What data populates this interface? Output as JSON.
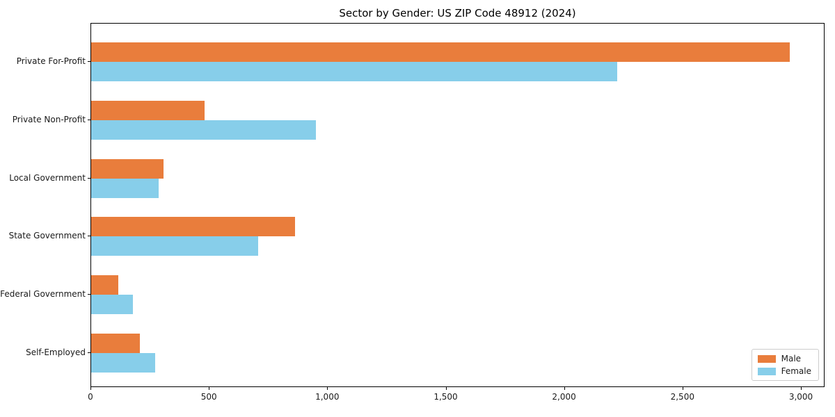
{
  "chart_data": {
    "type": "bar",
    "orientation": "horizontal",
    "title": "Sector by Gender: US ZIP Code 48912 (2024)",
    "categories": [
      "Private For-Profit",
      "Private Non-Profit",
      "Local Government",
      "State Government",
      "Federal Government",
      "Self-Employed"
    ],
    "series": [
      {
        "name": "Male",
        "color": "#e97d3c",
        "values": [
          2950,
          480,
          305,
          860,
          115,
          205
        ]
      },
      {
        "name": "Female",
        "color": "#87ceea",
        "values": [
          2220,
          950,
          285,
          705,
          175,
          270
        ]
      }
    ],
    "xlabel": "",
    "ylabel": "",
    "xlim": [
      0,
      3100
    ],
    "x_ticks": [
      0,
      500,
      1000,
      1500,
      2000,
      2500,
      3000
    ],
    "x_tick_labels": [
      "0",
      "500",
      "1,000",
      "1,500",
      "2,000",
      "2,500",
      "3,000"
    ],
    "grid": false,
    "legend_position": "lower-right"
  },
  "colors": {
    "male": "#e97d3c",
    "female": "#87ceea",
    "axis": "#000000",
    "text": "#1a1a1a",
    "legend_border": "#cccccc",
    "background": "#ffffff"
  }
}
